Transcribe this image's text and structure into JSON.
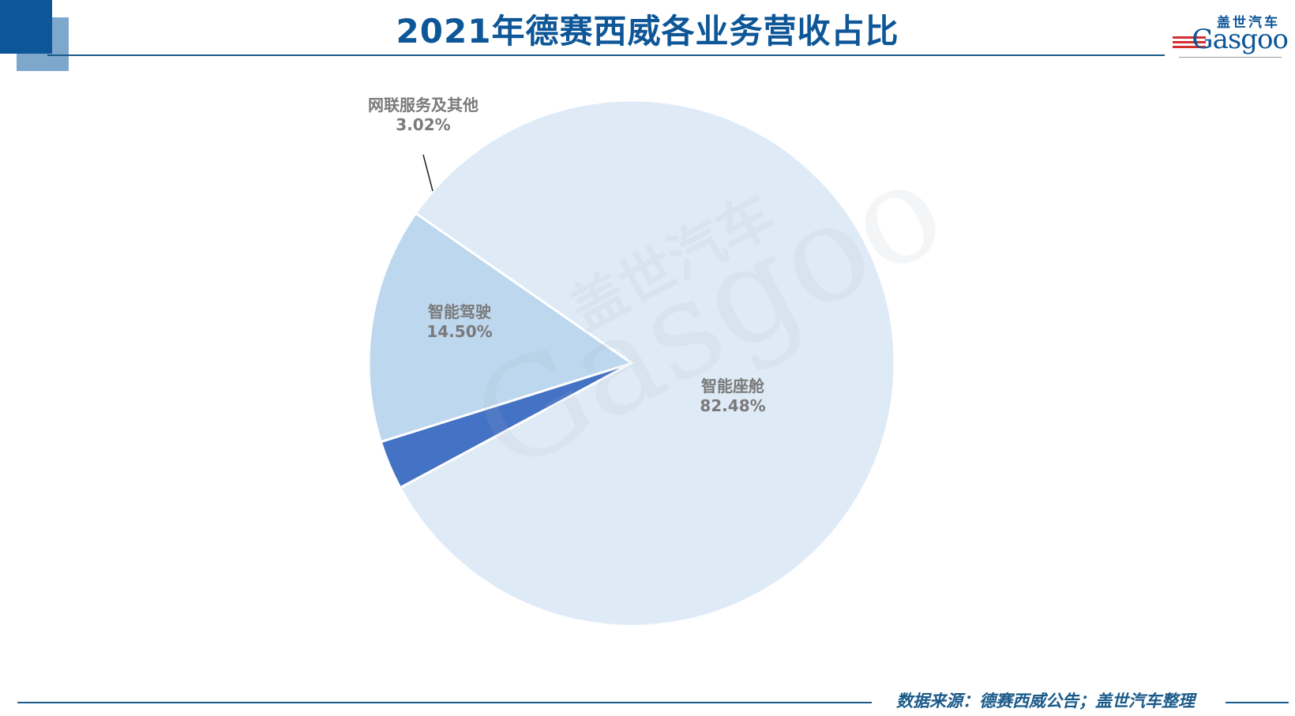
{
  "title": "2021年德赛西威各业务营收占比",
  "logo": {
    "cn": "盖世汽车",
    "en": "Gasgoo"
  },
  "source_note": "数据来源：德赛西威公告；盖世汽车整理",
  "colors": {
    "accent": "#0d5697",
    "slice_cockpit": "#deebf7",
    "slice_adas": "#bdd7ee",
    "slice_connect": "#4472c4"
  },
  "chart_data": {
    "type": "pie",
    "title": "2021年德赛西威各业务营收占比",
    "slices": [
      {
        "name": "网联服务及其他",
        "value": 3.02,
        "label": "3.02%"
      },
      {
        "name": "智能驾驶",
        "value": 14.5,
        "label": "14.50%"
      },
      {
        "name": "智能座舱",
        "value": 82.48,
        "label": "82.48%"
      }
    ]
  }
}
